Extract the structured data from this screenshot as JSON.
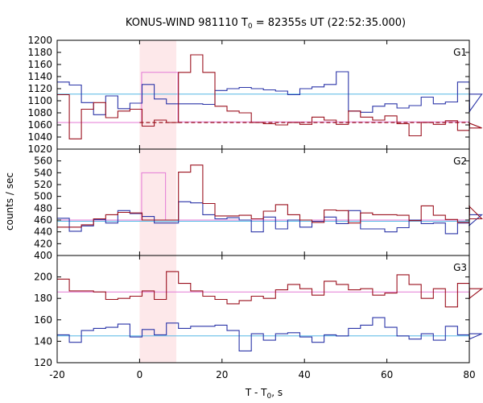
{
  "chart_data": {
    "type": "line",
    "title": "KONUS-WIND 981110 T",
    "title_sub": "0",
    "title_rest": " = 82355s UT (22:52:35.000)",
    "xlabel": "T - T",
    "xlabel_sub": "0",
    "xlabel_rest": ", s",
    "ylabel": "counts / sec",
    "xlim": [
      -20,
      80
    ],
    "xticks": [
      -20,
      0,
      20,
      40,
      60,
      80
    ],
    "highlight": {
      "x0": 0,
      "x1": 8.9,
      "color": "#fde8ea"
    },
    "colors": {
      "red": "#9b111e",
      "blue": "#2b35a8",
      "pink": "#e47ad6",
      "cyan": "#56b8e6"
    },
    "panels": [
      {
        "label": "G1",
        "ylim": [
          1020,
          1200
        ],
        "yticks": [
          1020,
          1040,
          1060,
          1080,
          1100,
          1120,
          1140,
          1160,
          1180,
          1200
        ],
        "red": {
          "x0": -20,
          "dx": 2.944,
          "values": [
            1110,
            1037,
            1086,
            1097,
            1072,
            1083,
            1086,
            1058,
            1068,
            1064,
            1147,
            1176,
            1147,
            1091,
            1083,
            1080,
            1064,
            1062,
            1060,
            1064,
            1061,
            1073,
            1068,
            1061,
            1083,
            1073,
            1068,
            1075,
            1062,
            1042,
            1064,
            1061,
            1067,
            1051,
            1063,
            1055
          ]
        },
        "blue": {
          "x0": -20,
          "dx": 2.944,
          "values": [
            1131,
            1126,
            1097,
            1077,
            1108,
            1087,
            1096,
            1127,
            1103,
            1095,
            1095,
            1095,
            1094,
            1117,
            1120,
            1122,
            1120,
            1118,
            1116,
            1110,
            1120,
            1123,
            1127,
            1148,
            1083,
            1081,
            1091,
            1095,
            1088,
            1092,
            1106,
            1095,
            1098,
            1131,
            1082,
            1111
          ]
        },
        "pink": {
          "pre": 1064,
          "post": 1065,
          "peak": 1147,
          "peak_x0": 0.5,
          "peak_x1": 9.3
        },
        "red_fit": 1064,
        "cyan": 1111
      },
      {
        "label": "G2",
        "ylim": [
          400,
          580
        ],
        "yticks": [
          400,
          420,
          440,
          460,
          480,
          500,
          520,
          540,
          560
        ],
        "red": {
          "x0": -20,
          "dx": 2.944,
          "values": [
            448,
            448,
            452,
            462,
            469,
            473,
            472,
            460,
            460,
            460,
            541,
            553,
            488,
            467,
            467,
            468,
            462,
            475,
            486,
            469,
            460,
            456,
            477,
            476,
            455,
            472,
            469,
            469,
            468,
            459,
            484,
            468,
            461,
            456,
            483,
            462
          ]
        },
        "blue": {
          "x0": -20,
          "dx": 2.944,
          "values": [
            463,
            441,
            450,
            461,
            455,
            476,
            471,
            466,
            455,
            455,
            491,
            489,
            469,
            462,
            464,
            460,
            440,
            465,
            445,
            460,
            448,
            458,
            465,
            454,
            476,
            445,
            445,
            440,
            447,
            460,
            454,
            455,
            437,
            455,
            451,
            469
          ]
        },
        "pink": {
          "pre": 460,
          "post": 460,
          "peak": 540,
          "peak_x0": 0.5,
          "peak_x1": 6.3
        },
        "red_fit": null,
        "cyan": 458
      },
      {
        "label": "G3",
        "ylim": [
          120,
          220
        ],
        "yticks": [
          120,
          140,
          160,
          180,
          200
        ],
        "red": {
          "x0": -20,
          "dx": 2.944,
          "values": [
            198,
            187,
            187,
            186,
            179,
            180,
            182,
            187,
            179,
            205,
            194,
            187,
            182,
            179,
            175,
            178,
            182,
            180,
            188,
            193,
            189,
            183,
            196,
            193,
            188,
            189,
            183,
            185,
            202,
            193,
            180,
            189,
            172,
            194,
            180,
            189
          ]
        },
        "blue": {
          "x0": -20,
          "dx": 2.944,
          "values": [
            146,
            139,
            150,
            152,
            153,
            156,
            144,
            151,
            146,
            157,
            152,
            154,
            154,
            155,
            150,
            131,
            147,
            141,
            147,
            148,
            144,
            139,
            146,
            145,
            152,
            155,
            162,
            153,
            145,
            142,
            147,
            141,
            154,
            146,
            142,
            147
          ]
        },
        "pink": {
          "pre": 186,
          "post": 186,
          "peak": null,
          "peak_x0": null,
          "peak_x1": null
        },
        "red_fit": null,
        "cyan": 145
      }
    ]
  }
}
